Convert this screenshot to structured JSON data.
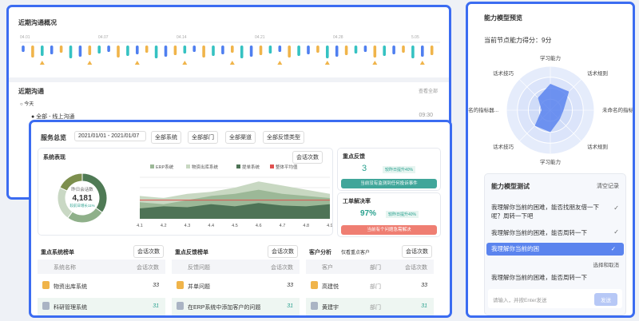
{
  "overview": {
    "title": "近期沟通概况",
    "dates": [
      "04.01",
      "04.07",
      "04.14",
      "04.21",
      "04.28",
      "5.05"
    ]
  },
  "recent": {
    "title": "近期沟通",
    "view_all": "查看全部",
    "today": "今天",
    "item": "全部 - 线上沟通",
    "time": "09:30"
  },
  "service": {
    "title": "服务总览",
    "date_range": "2021/01/01 - 2021/01/07",
    "filters": [
      "全部系统",
      "全部部门",
      "全部渠道",
      "全部反馈类型"
    ]
  },
  "system_perf": {
    "title": "系统表现",
    "metric": "会话次数"
  },
  "chart_data": [
    {
      "type": "pie",
      "center_label": "昨日会话数",
      "center_value": "4,181",
      "change": "较前日增长11%",
      "values": [
        35,
        25,
        22,
        18
      ],
      "colors": [
        "#4f7a55",
        "#8fb08a",
        "#c9d8c4",
        "#7d8f4e"
      ]
    },
    {
      "type": "area",
      "categories": [
        "4.1",
        "4.2",
        "4.3",
        "4.4",
        "4.5",
        "4.6",
        "4.7",
        "4.8",
        "4.9"
      ],
      "ylim": [
        0,
        100
      ],
      "series": [
        {
          "name": "物资出库系统",
          "color": "#c8d8c2",
          "values": [
            55,
            50,
            60,
            65,
            75,
            90,
            80,
            70,
            60
          ]
        },
        {
          "name": "ERP系统",
          "color": "#9cb897",
          "values": [
            40,
            35,
            45,
            55,
            60,
            70,
            60,
            55,
            50
          ]
        },
        {
          "name": "提单系统",
          "color": "#4e7356",
          "values": [
            25,
            30,
            28,
            35,
            30,
            38,
            32,
            30,
            35
          ]
        },
        {
          "name": "整体平均值",
          "color": "#e0504f",
          "values": [
            45,
            45,
            45,
            45,
            45,
            45,
            45,
            45,
            45
          ]
        }
      ]
    },
    {
      "type": "radar",
      "title": "能力模型预览",
      "score": "当前节点能力得分：9分",
      "rlim": [
        0,
        10
      ],
      "color": "#5b84ee",
      "axes": [
        "学习能力",
        "话术规则",
        "未命名的指标器...",
        "话术规则",
        "学习能力",
        "话术技巧",
        "未命名的指标器...",
        "话术技巧"
      ],
      "values": [
        6,
        6,
        3,
        3,
        5,
        5,
        2,
        4
      ]
    }
  ],
  "key_feedback": {
    "title": "重点反馈",
    "count": 3,
    "change": "较昨日提升40%",
    "button": "当前没有监测到任何投诉事件"
  },
  "ticket": {
    "title": "工单解决率",
    "rate": "97%",
    "change": "较昨日提升40%",
    "button": "当前有个问题急需解决"
  },
  "rankings": [
    {
      "title": "重点系统榜单",
      "select": "会话次数",
      "headers": [
        "系统名称",
        "会话次数"
      ],
      "rows": [
        [
          "物资出库系统",
          33
        ],
        [
          "科研管理系统",
          31
        ]
      ]
    },
    {
      "title": "重点反馈榜单",
      "select": "会话次数",
      "headers": [
        "反馈问题",
        "会话次数"
      ],
      "rows": [
        [
          "并单问题",
          33
        ],
        [
          "在ERP系统中添加客户的问题",
          31
        ]
      ]
    },
    {
      "title": "客户分析",
      "filter": "仅看重点客户",
      "select": "会话次数",
      "headers": [
        "客户",
        "部门",
        "会话次数"
      ],
      "rows": [
        [
          "高建悦",
          "部门",
          33
        ],
        [
          "黄建宇",
          "部门",
          31
        ]
      ]
    }
  ],
  "chat": {
    "title": "能力模型测试",
    "clear": "清空记录",
    "messages": [
      "我理解你当前的困难，能否找朋友借一下呢？周转一下吧",
      "我理解你当前的困难，能否周转一下"
    ],
    "selected": "我理解你当前的困",
    "action": "选择和取消",
    "last": "我理解你当前的困难，能否周转一下",
    "placeholder": "请输入，并按Enter发送",
    "send": "发送"
  }
}
